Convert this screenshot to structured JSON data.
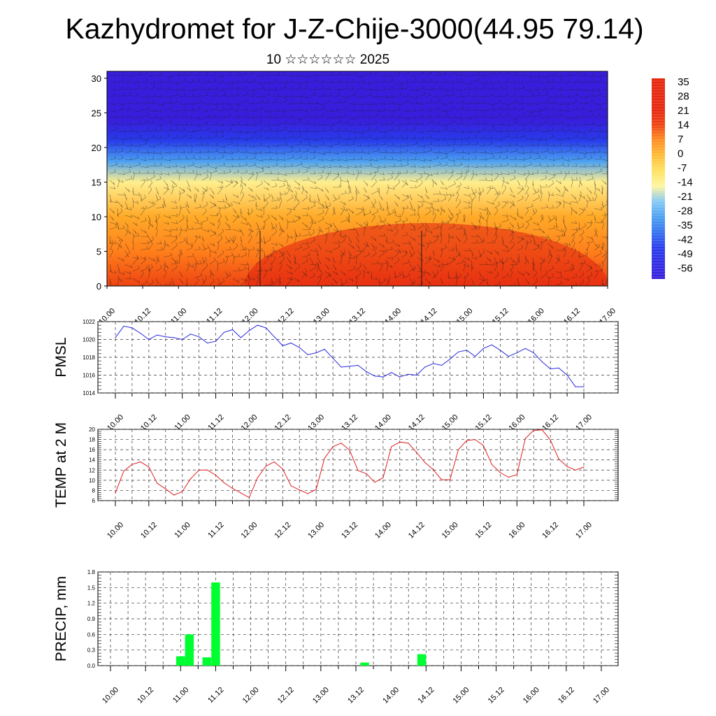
{
  "page": {
    "title": "Kazhydromet for J-Z-Chije-3000(44.95 79.14)",
    "subtitle": "10 ☆☆☆☆☆☆ 2025"
  },
  "chart_data": [
    {
      "type": "heatmap",
      "name": "cross-section",
      "x_tick_labels": [
        "10.00",
        "10.12",
        "11.00",
        "11.12",
        "12.00",
        "12.12",
        "13.00",
        "13.12",
        "14.00",
        "14.12",
        "15.00",
        "15.12",
        "16.00",
        "16.12",
        "17.00"
      ],
      "y_ticks": [
        0,
        5,
        10,
        15,
        20,
        25,
        30
      ],
      "ylim": [
        0,
        31
      ],
      "colorbar_labels": [
        "35",
        "28",
        "21",
        "14",
        "7",
        "0",
        "-7",
        "-14",
        "-21",
        "-28",
        "-35",
        "-42",
        "-49",
        "-56"
      ],
      "colors": {
        "warm": "#e22010",
        "orange": "#ff9a18",
        "yellow": "#fff080",
        "pale_blue": "#c8e6f8",
        "sky": "#30a0f0",
        "blue": "#2020d8",
        "violet": "#8a30f0"
      },
      "vertical_profile": [
        {
          "level": 0,
          "temp_c": 14
        },
        {
          "level": 5,
          "temp_c": 9
        },
        {
          "level": 10,
          "temp_c": 3
        },
        {
          "level": 15,
          "temp_c": -12
        },
        {
          "level": 18,
          "temp_c": -28
        },
        {
          "level": 21,
          "temp_c": -42
        },
        {
          "level": 24,
          "temp_c": -56
        },
        {
          "level": 27,
          "temp_c": -56
        },
        {
          "level": 31,
          "temp_c": -56
        }
      ]
    },
    {
      "type": "line",
      "name": "PMSL",
      "ylabel": "PMSL",
      "color": "#2a2ae0",
      "ylim": [
        1014,
        1022
      ],
      "y_ticks": [
        1014,
        1016,
        1018,
        1020,
        1022
      ],
      "x_tick_labels": [
        "10.00",
        "10.12",
        "11.00",
        "11.12",
        "12.00",
        "12.12",
        "13.00",
        "13.12",
        "14.00",
        "14.12",
        "15.00",
        "15.12",
        "16.00",
        "16.12",
        "17.00"
      ],
      "x_hours": [
        0,
        3,
        6,
        9,
        12,
        15,
        18,
        21,
        24,
        27,
        30,
        33,
        36,
        39,
        42,
        45,
        48,
        51,
        54,
        57,
        60,
        63,
        66,
        69,
        72,
        75,
        78,
        81,
        84,
        87,
        90,
        93,
        96,
        99,
        102,
        105,
        108,
        111,
        114,
        117,
        120,
        123,
        126,
        129,
        132,
        135,
        138,
        141,
        144,
        147,
        150,
        153,
        156,
        159,
        162,
        165,
        168
      ],
      "values": [
        1020.2,
        1021.5,
        1021.3,
        1020.7,
        1020.0,
        1020.5,
        1020.3,
        1020.2,
        1020.0,
        1020.6,
        1020.3,
        1019.6,
        1019.8,
        1020.8,
        1021.1,
        1020.2,
        1021.0,
        1021.6,
        1021.3,
        1020.3,
        1019.3,
        1019.6,
        1019.1,
        1018.3,
        1018.5,
        1018.9,
        1017.9,
        1016.9,
        1017.0,
        1017.1,
        1016.4,
        1015.9,
        1015.8,
        1016.3,
        1015.8,
        1016.1,
        1016.0,
        1016.9,
        1017.3,
        1017.1,
        1017.8,
        1018.6,
        1018.8,
        1018.1,
        1019.0,
        1019.4,
        1018.8,
        1018.1,
        1018.5,
        1019.0,
        1018.5,
        1017.5,
        1016.7,
        1016.8,
        1016.0,
        1014.7,
        1014.7
      ]
    },
    {
      "type": "line",
      "name": "TEMP at 2 M",
      "ylabel": "TEMP at 2 M",
      "color": "#e02020",
      "ylim": [
        6,
        20
      ],
      "y_ticks": [
        6,
        8,
        10,
        12,
        14,
        16,
        18,
        20
      ],
      "x_tick_labels": [
        "10.00",
        "10.12",
        "11.00",
        "11.12",
        "12.00",
        "12.12",
        "13.00",
        "13.12",
        "14.00",
        "14.12",
        "15.00",
        "15.12",
        "16.00",
        "16.12",
        "17.00"
      ],
      "x_hours": [
        0,
        3,
        6,
        9,
        12,
        15,
        18,
        21,
        24,
        27,
        30,
        33,
        36,
        39,
        42,
        45,
        48,
        51,
        54,
        57,
        60,
        63,
        66,
        69,
        72,
        75,
        78,
        81,
        84,
        87,
        90,
        93,
        96,
        99,
        102,
        105,
        108,
        111,
        114,
        117,
        120,
        123,
        126,
        129,
        132,
        135,
        138,
        141,
        144,
        147,
        150,
        153,
        156,
        159,
        162,
        165,
        168
      ],
      "values": [
        7.5,
        11.8,
        13.1,
        13.6,
        12.6,
        9.4,
        8.3,
        7.1,
        7.8,
        10.3,
        12.0,
        12.0,
        11.0,
        9.5,
        8.4,
        7.5,
        6.6,
        10.5,
        12.8,
        13.6,
        12.2,
        8.9,
        8.1,
        7.4,
        8.2,
        14.3,
        16.6,
        17.3,
        15.9,
        11.9,
        11.3,
        9.6,
        10.5,
        16.6,
        17.5,
        17.3,
        15.5,
        13.5,
        12.1,
        10.1,
        10.1,
        16.0,
        17.8,
        18.0,
        16.8,
        13.1,
        11.5,
        10.6,
        11.1,
        18.2,
        19.8,
        19.9,
        17.9,
        14.2,
        12.7,
        12.0,
        12.6
      ]
    },
    {
      "type": "bar",
      "name": "PRECIP, mm",
      "ylabel": "PRECIP, mm",
      "color": "#00ff30",
      "ylim": [
        0,
        1.8
      ],
      "y_ticks": [
        "0.0",
        "0.3",
        "0.6",
        "0.9",
        "1.2",
        "1.5",
        "1.8"
      ],
      "x_tick_labels": [
        "10.00",
        "10.12",
        "11.00",
        "11.12",
        "12.00",
        "12.12",
        "13.00",
        "13.12",
        "14.00",
        "14.12",
        "15.00",
        "15.12",
        "16.00",
        "16.12",
        "17.00"
      ],
      "bars": [
        {
          "x_hours": 24,
          "value": 0.18
        },
        {
          "x_hours": 27,
          "value": 0.6
        },
        {
          "x_hours": 33,
          "value": 0.16
        },
        {
          "x_hours": 36,
          "value": 1.6
        },
        {
          "x_hours": 87,
          "value": 0.06
        },
        {
          "x_hours": 106.5,
          "value": 0.22
        }
      ]
    }
  ]
}
